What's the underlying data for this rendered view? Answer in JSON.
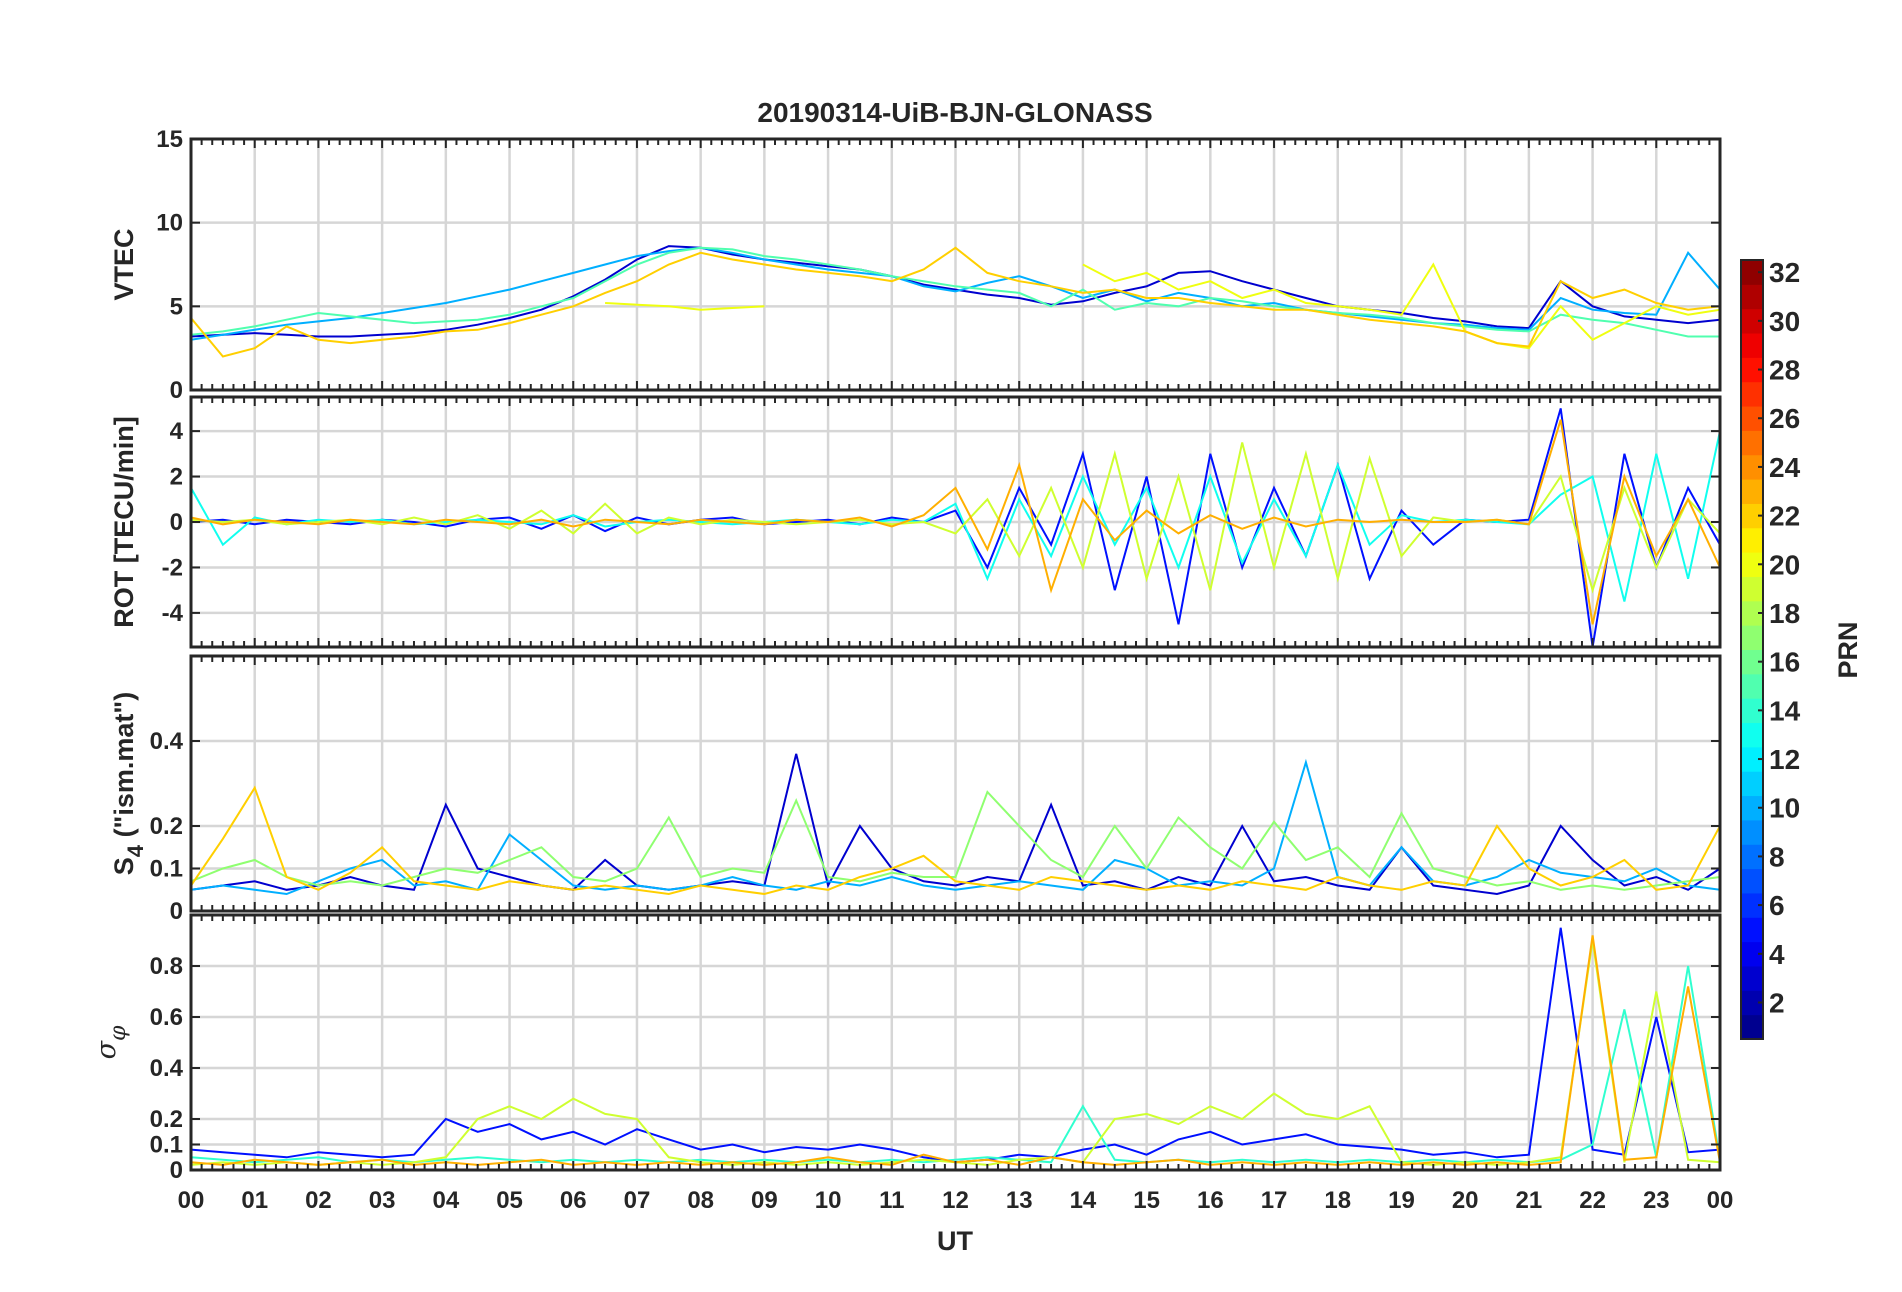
{
  "chart_data": {
    "type": "line",
    "title": "20190314-UiB-BJN-GLONASS",
    "xlabel": "UT",
    "x_tick_labels": [
      "00",
      "01",
      "02",
      "03",
      "04",
      "05",
      "06",
      "07",
      "08",
      "09",
      "10",
      "11",
      "12",
      "13",
      "14",
      "15",
      "16",
      "17",
      "18",
      "19",
      "20",
      "21",
      "22",
      "23",
      "00"
    ],
    "xlim": [
      0,
      24
    ],
    "x_step_hours": 0.5,
    "grid": true,
    "colorbar": {
      "label": "PRN",
      "range": [
        1,
        32
      ],
      "ticks": [
        2,
        4,
        6,
        8,
        10,
        12,
        14,
        16,
        18,
        20,
        22,
        24,
        26,
        28,
        30,
        32
      ],
      "colormap": "jet",
      "placement": "right"
    },
    "panels": [
      {
        "id": "vtec",
        "ylabel": "VTEC",
        "ylim": [
          0,
          15
        ],
        "yticks": [
          0,
          5,
          10,
          15
        ],
        "series": [
          {
            "prn": 3,
            "values": [
              3.2,
              3.3,
              3.4,
              3.3,
              3.2,
              3.2,
              3.3,
              3.4,
              3.6,
              3.9,
              4.3,
              4.8,
              5.6,
              6.6,
              7.8,
              8.6,
              8.5,
              8.1,
              7.8,
              7.6,
              7.4,
              7.2,
              6.8,
              6.3,
              6,
              5.7,
              5.5,
              5.1,
              5.3,
              5.8,
              6.2,
              7,
              7.1,
              6.5,
              6,
              5.5,
              5,
              4.8,
              4.6,
              4.3,
              4.1,
              3.8,
              3.7,
              6.5,
              5,
              4.4,
              4.2,
              4,
              4.2
            ]
          },
          {
            "prn": 10,
            "values": [
              3,
              3.3,
              3.6,
              3.9,
              4.1,
              4.3,
              4.6,
              4.9,
              5.2,
              5.6,
              6,
              6.5,
              7,
              7.5,
              8,
              8.3,
              8.5,
              8.2,
              7.8,
              7.5,
              7.2,
              7,
              6.8,
              6.2,
              5.9,
              6.4,
              6.8,
              6.2,
              5.5,
              6,
              5.3,
              5.8,
              5.5,
              5,
              5.2,
              4.8,
              4.6,
              4.4,
              4.2,
              4,
              3.9,
              3.7,
              3.6,
              5.5,
              4.8,
              4.6,
              4.5,
              8.2,
              6
            ]
          },
          {
            "prn": 15,
            "values": [
              3.3,
              3.5,
              3.8,
              4.2,
              4.6,
              4.4,
              4.2,
              4,
              4.1,
              4.2,
              4.5,
              5,
              5.5,
              6.5,
              7.5,
              8.2,
              8.5,
              8.4,
              8,
              7.8,
              7.5,
              7.2,
              6.8,
              6.5,
              6.2,
              6,
              5.8,
              5,
              6,
              4.8,
              5.2,
              5,
              5.5,
              5.3,
              5,
              4.8,
              4.6,
              4.5,
              4.3,
              4,
              3.8,
              3.6,
              3.5,
              4.5,
              4.2,
              4,
              3.6,
              3.2,
              3.2
            ]
          },
          {
            "prn": 20,
            "values": [
              null,
              null,
              null,
              null,
              null,
              null,
              null,
              null,
              null,
              null,
              null,
              null,
              null,
              5.2,
              5.1,
              5,
              4.8,
              4.9,
              5,
              null,
              null,
              null,
              null,
              null,
              null,
              null,
              null,
              null,
              7.5,
              6.5,
              7,
              6,
              6.5,
              5.5,
              6,
              5.2,
              5,
              4.8,
              4.5,
              7.5,
              3.5,
              2.8,
              2.5,
              5,
              3,
              4,
              5,
              4.5,
              4.8
            ]
          },
          {
            "prn": 22,
            "values": [
              4.3,
              2,
              2.5,
              3.8,
              3,
              2.8,
              3,
              3.2,
              3.5,
              3.6,
              4,
              4.5,
              5,
              5.8,
              6.5,
              7.5,
              8.2,
              7.8,
              7.5,
              7.2,
              7,
              6.8,
              6.5,
              7.2,
              8.5,
              7,
              6.5,
              6.2,
              5.8,
              6,
              5.5,
              5.5,
              5.2,
              5,
              4.8,
              4.8,
              4.5,
              4.2,
              4,
              3.8,
              3.5,
              2.8,
              2.6,
              6.5,
              5.5,
              6,
              5.2,
              4.8,
              5
            ]
          }
        ]
      },
      {
        "id": "rot",
        "ylabel": "ROT [TECU/min]",
        "ylim": [
          -5.5,
          5.5
        ],
        "yticks": [
          -4,
          -2,
          0,
          2,
          4
        ],
        "series": [
          {
            "prn": 5,
            "values": [
              0,
              0.1,
              -0.1,
              0.1,
              0,
              -0.1,
              0.1,
              0,
              -0.2,
              0.1,
              0.2,
              -0.3,
              0.3,
              -0.4,
              0.2,
              -0.1,
              0.1,
              0.2,
              -0.1,
              0,
              0.1,
              -0.1,
              0.2,
              0,
              0.5,
              -2,
              1.5,
              -1,
              3,
              -3,
              2,
              -4.5,
              3,
              -2,
              1.5,
              -1.5,
              2.5,
              -2.5,
              0.5,
              -1,
              0.1,
              0,
              0.1,
              5,
              -5.5,
              3,
              -2,
              1.5,
              -1
            ]
          },
          {
            "prn": 13,
            "values": [
              1.5,
              -1,
              0.2,
              -0.1,
              0.1,
              0,
              0.1,
              -0.1,
              0,
              0.1,
              0,
              -0.1,
              0.3,
              -0.2,
              0,
              0.1,
              0,
              -0.1,
              0,
              0.1,
              0,
              -0.1,
              0.1,
              0,
              0.8,
              -2.5,
              1,
              -1.5,
              2,
              -1,
              1.5,
              -2,
              2,
              -1.8,
              1,
              -1.5,
              2.5,
              -1,
              0.3,
              0,
              0.1,
              0,
              -0.1,
              1.2,
              2,
              -3.5,
              3,
              -2.5,
              4
            ]
          },
          {
            "prn": 19,
            "values": [
              0.1,
              0,
              0.1,
              -0.1,
              0,
              0.1,
              -0.1,
              0.2,
              -0.1,
              0.3,
              -0.3,
              0.5,
              -0.5,
              0.8,
              -0.5,
              0.2,
              -0.1,
              0.1,
              0,
              -0.1,
              0,
              0.1,
              -0.1,
              0,
              -0.5,
              1,
              -1.5,
              1.5,
              -2,
              3,
              -2.5,
              2,
              -3,
              3.5,
              -2,
              3,
              -2.5,
              2.8,
              -1.5,
              0.2,
              0,
              0.1,
              -0.1,
              2,
              -3,
              1.5,
              -2,
              1,
              -0.5
            ]
          },
          {
            "prn": 23,
            "values": [
              0.2,
              -0.1,
              0.1,
              0,
              -0.1,
              0.1,
              0,
              -0.1,
              0.1,
              0,
              -0.1,
              0.1,
              -0.2,
              0.1,
              0,
              -0.1,
              0.1,
              0,
              -0.1,
              0.1,
              0,
              0.2,
              -0.2,
              0.3,
              1.5,
              -1.2,
              2.5,
              -3,
              1,
              -0.8,
              0.5,
              -0.5,
              0.3,
              -0.3,
              0.2,
              -0.2,
              0.1,
              0,
              0.1,
              0,
              0,
              0.1,
              -0.1,
              4.5,
              -4.5,
              2,
              -1.5,
              1,
              -2
            ]
          }
        ]
      },
      {
        "id": "s4",
        "ylabel": "S",
        "ylabel_sub": "4",
        "ylabel_suffix": " (\"ism.mat\")",
        "ylim": [
          0,
          0.6
        ],
        "yticks": [
          0,
          0.1,
          0.2,
          0.4
        ],
        "series": [
          {
            "prn": 3,
            "values": [
              0.05,
              0.06,
              0.07,
              0.05,
              0.06,
              0.08,
              0.06,
              0.05,
              0.25,
              0.1,
              0.08,
              0.06,
              0.05,
              0.12,
              0.06,
              0.05,
              0.06,
              0.07,
              0.06,
              0.37,
              0.06,
              0.2,
              0.1,
              0.07,
              0.06,
              0.08,
              0.07,
              0.25,
              0.06,
              0.07,
              0.05,
              0.08,
              0.06,
              0.2,
              0.07,
              0.08,
              0.06,
              0.05,
              0.15,
              0.06,
              0.05,
              0.04,
              0.06,
              0.2,
              0.12,
              0.06,
              0.08,
              0.05,
              0.1
            ]
          },
          {
            "prn": 10,
            "values": [
              0.05,
              0.06,
              0.05,
              0.04,
              0.07,
              0.1,
              0.12,
              0.06,
              0.07,
              0.05,
              0.18,
              0.12,
              0.06,
              0.05,
              0.06,
              0.05,
              0.06,
              0.08,
              0.06,
              0.05,
              0.07,
              0.06,
              0.08,
              0.06,
              0.05,
              0.06,
              0.07,
              0.06,
              0.05,
              0.12,
              0.1,
              0.06,
              0.07,
              0.06,
              0.1,
              0.35,
              0.08,
              0.06,
              0.15,
              0.07,
              0.06,
              0.08,
              0.12,
              0.09,
              0.08,
              0.07,
              0.1,
              0.06,
              0.05
            ]
          },
          {
            "prn": 17,
            "values": [
              0.07,
              0.1,
              0.12,
              0.08,
              0.06,
              0.07,
              0.06,
              0.08,
              0.1,
              0.09,
              0.12,
              0.15,
              0.08,
              0.07,
              0.1,
              0.22,
              0.08,
              0.1,
              0.09,
              0.26,
              0.08,
              0.07,
              0.09,
              0.08,
              0.08,
              0.28,
              0.2,
              0.12,
              0.08,
              0.2,
              0.1,
              0.22,
              0.15,
              0.1,
              0.21,
              0.12,
              0.15,
              0.08,
              0.23,
              0.1,
              0.08,
              0.06,
              0.07,
              0.05,
              0.06,
              0.05,
              0.06,
              0.07,
              0.08
            ]
          },
          {
            "prn": 22,
            "values": [
              0.06,
              0.17,
              0.29,
              0.08,
              0.05,
              0.09,
              0.15,
              0.07,
              0.06,
              0.05,
              0.07,
              0.06,
              0.05,
              0.06,
              0.05,
              0.04,
              0.06,
              0.05,
              0.04,
              0.06,
              0.05,
              0.08,
              0.1,
              0.13,
              0.07,
              0.06,
              0.05,
              0.08,
              0.07,
              0.06,
              0.05,
              0.06,
              0.05,
              0.07,
              0.06,
              0.05,
              0.08,
              0.06,
              0.05,
              0.07,
              0.06,
              0.2,
              0.1,
              0.06,
              0.08,
              0.12,
              0.05,
              0.06,
              0.2
            ]
          }
        ]
      },
      {
        "id": "sigma",
        "ylabel": "σ",
        "ylabel_sub": "φ",
        "ylabel_suffix": "",
        "ylim": [
          0,
          1
        ],
        "yticks": [
          0,
          0.1,
          0.2,
          0.4,
          0.6,
          0.8
        ],
        "series": [
          {
            "prn": 5,
            "values": [
              0.08,
              0.07,
              0.06,
              0.05,
              0.07,
              0.06,
              0.05,
              0.06,
              0.2,
              0.15,
              0.18,
              0.12,
              0.15,
              0.1,
              0.16,
              0.12,
              0.08,
              0.1,
              0.07,
              0.09,
              0.08,
              0.1,
              0.08,
              0.05,
              0.03,
              0.04,
              0.06,
              0.05,
              0.08,
              0.1,
              0.06,
              0.12,
              0.15,
              0.1,
              0.12,
              0.14,
              0.1,
              0.09,
              0.08,
              0.06,
              0.07,
              0.05,
              0.06,
              0.95,
              0.08,
              0.06,
              0.6,
              0.07,
              0.08
            ]
          },
          {
            "prn": 14,
            "values": [
              0.05,
              0.04,
              0.03,
              0.04,
              0.05,
              0.03,
              0.04,
              0.03,
              0.04,
              0.05,
              0.04,
              0.03,
              0.04,
              0.03,
              0.04,
              0.03,
              0.04,
              0.03,
              0.04,
              0.03,
              0.04,
              0.03,
              0.04,
              0.03,
              0.04,
              0.05,
              0.04,
              0.03,
              0.25,
              0.04,
              0.03,
              0.04,
              0.03,
              0.04,
              0.03,
              0.04,
              0.03,
              0.04,
              0.03,
              0.04,
              0.03,
              0.04,
              0.03,
              0.04,
              0.1,
              0.63,
              0.05,
              0.8,
              0.04
            ]
          },
          {
            "prn": 19,
            "values": [
              0.02,
              0.03,
              0.02,
              0.03,
              0.02,
              0.03,
              0.02,
              0.03,
              0.05,
              0.2,
              0.25,
              0.2,
              0.28,
              0.22,
              0.2,
              0.05,
              0.03,
              0.02,
              0.03,
              0.02,
              0.03,
              0.02,
              0.03,
              0.04,
              0.03,
              0.02,
              0.04,
              0.05,
              0.03,
              0.2,
              0.22,
              0.18,
              0.25,
              0.2,
              0.3,
              0.22,
              0.2,
              0.25,
              0.03,
              0.02,
              0.03,
              0.02,
              0.03,
              0.05,
              0.9,
              0.03,
              0.7,
              0.04,
              0.03
            ]
          },
          {
            "prn": 23,
            "values": [
              0.03,
              0.02,
              0.04,
              0.03,
              0.02,
              0.03,
              0.04,
              0.02,
              0.03,
              0.02,
              0.03,
              0.04,
              0.02,
              0.03,
              0.02,
              0.03,
              0.02,
              0.03,
              0.02,
              0.03,
              0.05,
              0.03,
              0.02,
              0.06,
              0.03,
              0.04,
              0.02,
              0.05,
              0.03,
              0.02,
              0.03,
              0.04,
              0.02,
              0.03,
              0.02,
              0.03,
              0.02,
              0.03,
              0.02,
              0.03,
              0.02,
              0.03,
              0.02,
              0.03,
              0.92,
              0.04,
              0.05,
              0.72,
              0.03
            ]
          }
        ]
      }
    ]
  }
}
